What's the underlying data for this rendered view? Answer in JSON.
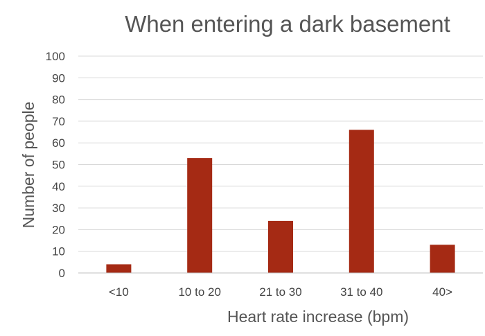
{
  "chart_data": {
    "type": "bar",
    "title": "When entering a dark basement",
    "xlabel": "Heart rate increase (bpm)",
    "ylabel": "Number of people",
    "categories": [
      "<10",
      "10 to 20",
      "21 to 30",
      "31 to 40",
      "40>"
    ],
    "values": [
      4,
      53,
      24,
      66,
      13
    ],
    "ylim": [
      0,
      100
    ],
    "yticks": [
      0,
      10,
      20,
      30,
      40,
      50,
      60,
      70,
      80,
      90,
      100
    ],
    "grid": true,
    "legend": "none",
    "bar_color": "#a52a14"
  }
}
